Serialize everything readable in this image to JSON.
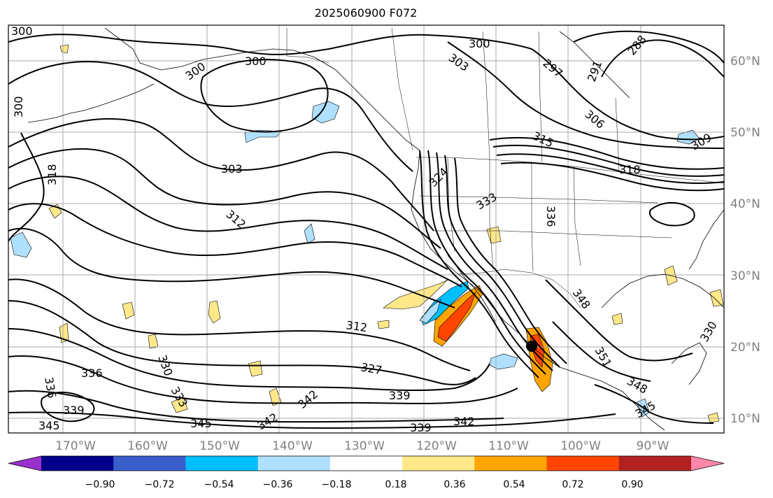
{
  "title": "2025060900 F072",
  "map": {
    "lon_range": [
      -180,
      -81
    ],
    "lat_range": [
      8,
      65
    ],
    "lon_ticks": [
      "170°W",
      "160°W",
      "150°W",
      "140°W",
      "130°W",
      "120°W",
      "110°W",
      "100°W",
      "90°W"
    ],
    "lat_ticks": [
      "10°N",
      "20°N",
      "30°N",
      "40°N",
      "50°N",
      "60°N"
    ],
    "grid": true,
    "contour_labels": [
      "300",
      "300",
      "300",
      "300",
      "303",
      "300",
      "297",
      "291",
      "288",
      "306",
      "315",
      "318",
      "309",
      "303",
      "318",
      "312",
      "324",
      "333",
      "336",
      "348",
      "312",
      "327",
      "339",
      "339",
      "342",
      "336",
      "330",
      "336",
      "339",
      "333",
      "342",
      "345",
      "345",
      "342",
      "351",
      "345",
      "348",
      "330"
    ]
  },
  "colorbar": {
    "ticks": [
      "−0.90",
      "−0.72",
      "−0.54",
      "−0.36",
      "−0.18",
      "0.18",
      "0.36",
      "0.54",
      "0.72",
      "0.90"
    ],
    "colors": [
      "#9932cc",
      "#00008b",
      "#3a5fcd",
      "#00bfff",
      "#b0e0ff",
      "#ffffff",
      "#ffe88a",
      "#ffa500",
      "#ff4500",
      "#b22222",
      "#ff88aa"
    ]
  }
}
